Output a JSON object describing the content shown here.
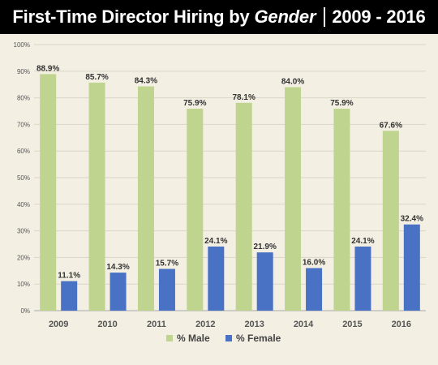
{
  "header": {
    "title_main": "First-Time Director Hiring by",
    "title_emphasis": "Gender",
    "title_years": "2009 - 2016"
  },
  "chart_data": {
    "type": "bar",
    "title": "First-Time Director Hiring by Gender | 2009 - 2016",
    "categories": [
      "2009",
      "2010",
      "2011",
      "2012",
      "2013",
      "2014",
      "2015",
      "2016"
    ],
    "series": [
      {
        "name": "% Male",
        "color": "#bfd48e",
        "values": [
          88.9,
          85.7,
          84.3,
          75.9,
          78.1,
          84.0,
          75.9,
          67.6
        ],
        "labels": [
          "88.9%",
          "85.7%",
          "84.3%",
          "75.9%",
          "78.1%",
          "84.0%",
          "75.9%",
          "67.6%"
        ]
      },
      {
        "name": "% Female",
        "color": "#4a72c4",
        "values": [
          11.1,
          14.3,
          15.7,
          24.1,
          21.9,
          16.0,
          24.1,
          32.4
        ],
        "labels": [
          "11.1%",
          "14.3%",
          "15.7%",
          "24.1%",
          "21.9%",
          "16.0%",
          "24.1%",
          "32.4%"
        ]
      }
    ],
    "ylim": [
      0,
      100
    ],
    "yticks": [
      "0%",
      "10%",
      "20%",
      "30%",
      "40%",
      "50%",
      "60%",
      "70%",
      "80%",
      "90%",
      "100%"
    ],
    "grid": true,
    "legend": "bottom-center"
  }
}
